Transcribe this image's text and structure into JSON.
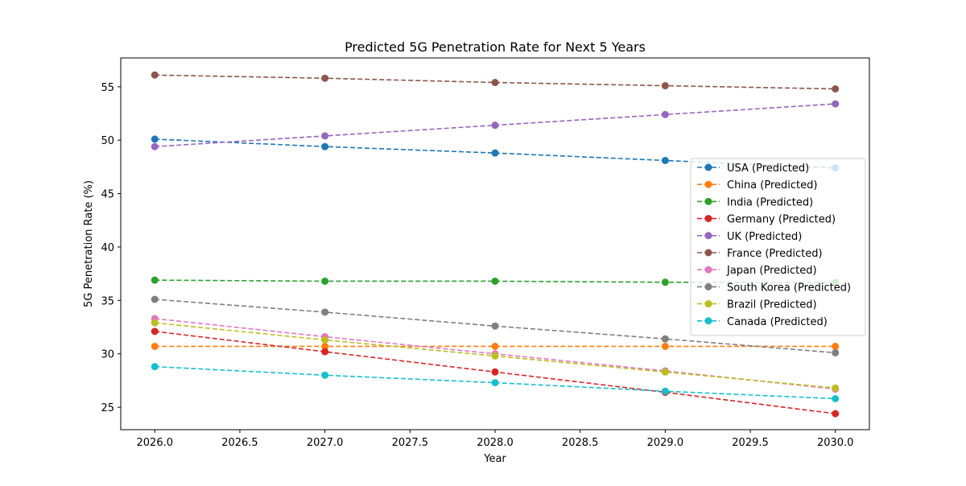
{
  "chart_data": {
    "type": "line",
    "title": "Predicted 5G Penetration Rate for Next 5 Years",
    "xlabel": "Year",
    "ylabel": "5G Penetration Rate (%)",
    "xlim": [
      2025.8,
      2030.2
    ],
    "ylim": [
      22.9,
      57.7
    ],
    "x_ticks": [
      2026.0,
      2026.5,
      2027.0,
      2027.5,
      2028.0,
      2028.5,
      2029.0,
      2029.5,
      2030.0
    ],
    "x_tick_labels": [
      "2026.0",
      "2026.5",
      "2027.0",
      "2027.5",
      "2028.0",
      "2028.5",
      "2029.0",
      "2029.5",
      "2030.0"
    ],
    "y_ticks": [
      25,
      30,
      35,
      40,
      45,
      50,
      55
    ],
    "y_tick_labels": [
      "25",
      "30",
      "35",
      "40",
      "45",
      "50",
      "55"
    ],
    "x": [
      2026,
      2027,
      2028,
      2029,
      2030
    ],
    "grid": false,
    "legend_position": "right",
    "line_style": "dashed",
    "marker": "circle",
    "series": [
      {
        "name": "USA (Predicted)",
        "color": "#1f77b4",
        "values": [
          50.1,
          49.4,
          48.8,
          48.1,
          47.4
        ]
      },
      {
        "name": "China (Predicted)",
        "color": "#ff7f0e",
        "values": [
          30.7,
          30.7,
          30.7,
          30.7,
          30.7
        ]
      },
      {
        "name": "India (Predicted)",
        "color": "#2ca02c",
        "values": [
          36.9,
          36.8,
          36.8,
          36.7,
          36.7
        ]
      },
      {
        "name": "Germany (Predicted)",
        "color": "#d62728",
        "values": [
          32.1,
          30.2,
          28.3,
          26.4,
          24.4
        ]
      },
      {
        "name": "UK (Predicted)",
        "color": "#9467bd",
        "values": [
          49.4,
          50.4,
          51.4,
          52.4,
          53.4
        ]
      },
      {
        "name": "France (Predicted)",
        "color": "#8c564b",
        "values": [
          56.1,
          55.8,
          55.4,
          55.1,
          54.8
        ]
      },
      {
        "name": "Japan (Predicted)",
        "color": "#e377c2",
        "values": [
          33.3,
          31.6,
          30.0,
          28.4,
          26.7
        ]
      },
      {
        "name": "South Korea (Predicted)",
        "color": "#7f7f7f",
        "values": [
          35.1,
          33.9,
          32.6,
          31.4,
          30.1
        ]
      },
      {
        "name": "Brazil (Predicted)",
        "color": "#bcbd22",
        "values": [
          32.9,
          31.3,
          29.8,
          28.3,
          26.8
        ]
      },
      {
        "name": "Canada (Predicted)",
        "color": "#17becf",
        "values": [
          28.8,
          28.0,
          27.3,
          26.5,
          25.8
        ]
      }
    ]
  }
}
